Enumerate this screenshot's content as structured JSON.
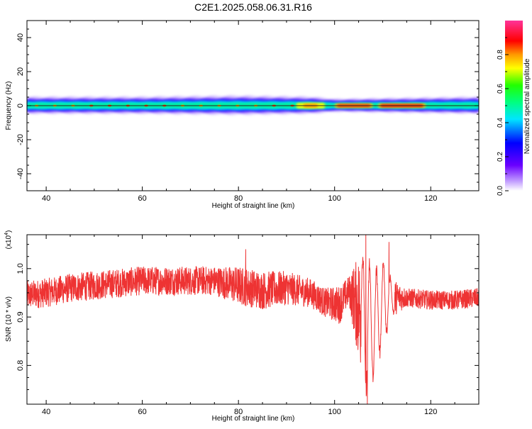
{
  "title": "C2E1.2025.058.06.31.R16",
  "colors": {
    "background": "#ffffff",
    "axis": "#000000",
    "snr_line": "#ee3333",
    "spectrogram_background": "#ffffff"
  },
  "chart_data": [
    {
      "type": "heatmap",
      "name": "spectrogram",
      "xlabel": "Height of straight line (km)",
      "ylabel": "Frequency (Hz)",
      "xlim": [
        36,
        130
      ],
      "ylim": [
        -50,
        50
      ],
      "xticks": [
        40,
        60,
        80,
        100,
        120
      ],
      "yticks": [
        40,
        20,
        0,
        -20,
        -40
      ],
      "grid": false,
      "colorbar": {
        "label": "Normalized spectral amplitude",
        "range": [
          0,
          1
        ],
        "ticks": [
          "0.0",
          "0.2",
          "0.4",
          "0.6",
          "0.8"
        ],
        "colormap": "rainbow (white-purple-blue-cyan-green-yellow-red-pink)"
      },
      "description_points": {
        "note": "Energy concentrated near 0 Hz along the full height range; peak amplitude (~1) bands around 95 km and 100-118 km.",
        "bandwidth_hz": [
          {
            "x": 37,
            "half_width": 4
          },
          {
            "x": 60,
            "half_width": 4
          },
          {
            "x": 80,
            "half_width": 4.5
          },
          {
            "x": 95,
            "half_width": 4
          },
          {
            "x": 100,
            "half_width": 3
          },
          {
            "x": 115,
            "half_width": 3.5
          },
          {
            "x": 130,
            "half_width": 4
          }
        ]
      }
    },
    {
      "type": "line",
      "name": "snr",
      "xlabel": "Height of straight line (km)",
      "ylabel": "SNR (10 * v/v)",
      "y_multiplier": "(x10^4)",
      "xlim": [
        36,
        130
      ],
      "ylim": [
        0.72,
        1.07
      ],
      "xticks": [
        40,
        60,
        80,
        100,
        120
      ],
      "yticks": [
        0.8,
        0.9,
        1.0
      ],
      "ytick_labels": [
        "0.8",
        "0.9",
        "1.0"
      ],
      "grid": false,
      "series": [
        {
          "color": "#ee3333",
          "envelope": [
            {
              "x": 36,
              "mean": 0.945,
              "amp": 0.03
            },
            {
              "x": 40,
              "mean": 0.95,
              "amp": 0.03
            },
            {
              "x": 45,
              "mean": 0.96,
              "amp": 0.03
            },
            {
              "x": 50,
              "mean": 0.965,
              "amp": 0.03
            },
            {
              "x": 55,
              "mean": 0.97,
              "amp": 0.03
            },
            {
              "x": 60,
              "mean": 0.975,
              "amp": 0.03
            },
            {
              "x": 65,
              "mean": 0.975,
              "amp": 0.03
            },
            {
              "x": 70,
              "mean": 0.975,
              "amp": 0.03
            },
            {
              "x": 75,
              "mean": 0.975,
              "amp": 0.03
            },
            {
              "x": 80,
              "mean": 0.965,
              "amp": 0.04
            },
            {
              "x": 85,
              "mean": 0.955,
              "amp": 0.04
            },
            {
              "x": 90,
              "mean": 0.96,
              "amp": 0.035
            },
            {
              "x": 95,
              "mean": 0.95,
              "amp": 0.03
            },
            {
              "x": 98,
              "mean": 0.93,
              "amp": 0.03
            },
            {
              "x": 101,
              "mean": 0.925,
              "amp": 0.04
            },
            {
              "x": 103,
              "mean": 0.955,
              "amp": 0.03
            },
            {
              "x": 106,
              "mean": 0.9,
              "amp": 0.15
            },
            {
              "x": 107,
              "mean": 0.88,
              "amp": 0.16
            },
            {
              "x": 108,
              "mean": 0.88,
              "amp": 0.12
            },
            {
              "x": 110,
              "mean": 0.93,
              "amp": 0.1
            },
            {
              "x": 112,
              "mean": 0.94,
              "amp": 0.04
            },
            {
              "x": 115,
              "mean": 0.94,
              "amp": 0.02
            },
            {
              "x": 120,
              "mean": 0.935,
              "amp": 0.02
            },
            {
              "x": 125,
              "mean": 0.935,
              "amp": 0.02
            },
            {
              "x": 130,
              "mean": 0.94,
              "amp": 0.02
            }
          ],
          "notable": [
            {
              "x": 106.5,
              "value": 1.07,
              "kind": "max"
            },
            {
              "x": 106.8,
              "value": 0.72,
              "kind": "min"
            },
            {
              "x": 111.3,
              "value": 1.055,
              "kind": "local max"
            },
            {
              "x": 81.5,
              "value": 1.04,
              "kind": "local max"
            }
          ]
        }
      ]
    }
  ]
}
